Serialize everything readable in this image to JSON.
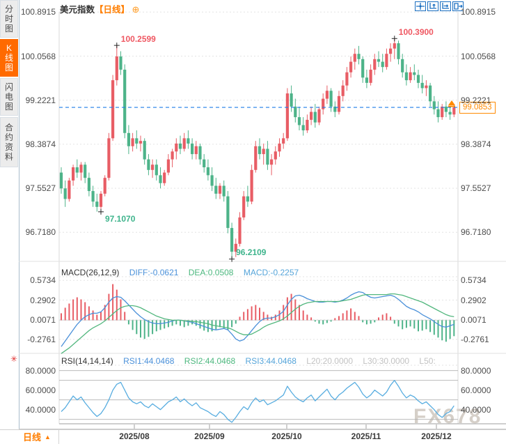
{
  "sidebar": {
    "items": [
      {
        "key": "timeshare",
        "label": "分时图",
        "active": false
      },
      {
        "key": "kline",
        "label": "K线图",
        "active": true
      },
      {
        "key": "lightning",
        "label": "闪电图",
        "active": false
      },
      {
        "key": "contract",
        "label": "合约资料",
        "active": false
      }
    ]
  },
  "header": {
    "title": "美元指数",
    "period_tag": "【日线】",
    "zoom_icon": "⊕"
  },
  "toolbar": {
    "icons": [
      "crosshair",
      "scale-y-axis",
      "scale-x-axis",
      "pan-exit"
    ]
  },
  "main_chart": {
    "y_tick_labels": [
      "100.8915",
      "100.0568",
      "99.2221",
      "98.3874",
      "97.5527",
      "96.7180"
    ],
    "current_price_label": "99.0853",
    "x_tick_labels": [
      "2025/08",
      "2025/09",
      "2025/10",
      "2025/11",
      "2025/12"
    ]
  },
  "macd": {
    "label": "MACD(26,12,9)",
    "diff_label": "DIFF:-0.0621",
    "dea_label": "DEA:0.0508",
    "macd_label": "MACD:-0.2257",
    "y_tick_labels": [
      "0.5734",
      "0.2902",
      "0.0071",
      "-0.2761"
    ]
  },
  "rsi": {
    "label": "RSI(14,14,14)",
    "rsi1_label": "RSI1:44.0468",
    "rsi2_label": "RSI2:44.0468",
    "rsi3_label": "RSI3:44.0468",
    "l20_label": "L20:20.0000",
    "l30_label": "L30:30.0000",
    "l50_label": "L50:",
    "y_tick_labels": [
      "80.0000",
      "60.0000",
      "40.0000"
    ]
  },
  "footer": {
    "period": "日线",
    "up_arrow": "▲",
    "watermark": "FX678"
  },
  "icons": {
    "blink": "✳"
  },
  "colors": {
    "up": "#e85d65",
    "down": "#4db389",
    "price_line": "#1f7ce8",
    "accent_orange": "#ff7e00",
    "diff_line": "#4a90d9",
    "dea_line": "#52b77e",
    "rsi_line": "#58ade0",
    "grid": "#e3e3e3",
    "level_line": "#b0b0b0",
    "toolbar_blue": "#1a6ec0"
  },
  "chart_data": {
    "type": "candlestick",
    "title": "美元指数 日线 (US Dollar Index, daily)",
    "x_axis": {
      "months": [
        "2025/08",
        "2025/09",
        "2025/10",
        "2025/11",
        "2025/12"
      ]
    },
    "main": {
      "y_ticks": [
        100.8915,
        100.0568,
        99.2221,
        98.3874,
        97.5527,
        96.718
      ],
      "current_price": 99.0853,
      "annotations": [
        {
          "label": "100.2599",
          "value": 100.2599,
          "index": 14,
          "side": "high"
        },
        {
          "label": "100.3900",
          "value": 100.39,
          "index": 84,
          "side": "high"
        },
        {
          "label": "97.1070",
          "value": 97.107,
          "index": 10,
          "side": "low"
        },
        {
          "label": "96.2109",
          "value": 96.2109,
          "index": 43,
          "side": "low",
          "dy": -17
        }
      ],
      "candles": [
        [
          97.85,
          97.95,
          97.45,
          97.55
        ],
        [
          97.55,
          97.7,
          97.2,
          97.35
        ],
        [
          97.35,
          97.75,
          97.3,
          97.7
        ],
        [
          97.7,
          98.0,
          97.6,
          97.95
        ],
        [
          97.95,
          98.1,
          97.75,
          97.85
        ],
        [
          97.85,
          98.05,
          97.7,
          98.0
        ],
        [
          98.0,
          98.05,
          97.65,
          97.75
        ],
        [
          97.75,
          97.85,
          97.4,
          97.5
        ],
        [
          97.5,
          97.6,
          97.2,
          97.3
        ],
        [
          97.3,
          97.45,
          97.11,
          97.2
        ],
        [
          97.2,
          97.5,
          97.107,
          97.45
        ],
        [
          97.45,
          97.8,
          97.4,
          97.75
        ],
        [
          97.75,
          98.6,
          97.7,
          98.5
        ],
        [
          98.5,
          99.7,
          98.45,
          99.6
        ],
        [
          99.6,
          100.2599,
          99.5,
          100.05
        ],
        [
          100.05,
          100.15,
          99.7,
          99.8
        ],
        [
          99.8,
          99.9,
          98.5,
          98.6
        ],
        [
          98.6,
          98.75,
          98.2,
          98.35
        ],
        [
          98.35,
          98.6,
          98.25,
          98.5
        ],
        [
          98.5,
          98.65,
          98.3,
          98.4
        ],
        [
          98.4,
          98.55,
          98.25,
          98.45
        ],
        [
          98.45,
          98.5,
          98.0,
          98.1
        ],
        [
          98.1,
          98.2,
          97.8,
          97.9
        ],
        [
          97.9,
          98.1,
          97.75,
          98.0
        ],
        [
          98.0,
          98.1,
          97.7,
          97.8
        ],
        [
          97.8,
          97.95,
          97.55,
          97.65
        ],
        [
          97.65,
          97.9,
          97.6,
          97.85
        ],
        [
          97.85,
          98.2,
          97.8,
          98.1
        ],
        [
          98.1,
          98.3,
          97.95,
          98.25
        ],
        [
          98.25,
          98.5,
          98.1,
          98.4
        ],
        [
          98.4,
          98.55,
          98.2,
          98.3
        ],
        [
          98.3,
          98.6,
          98.25,
          98.5
        ],
        [
          98.5,
          98.65,
          98.3,
          98.4
        ],
        [
          98.4,
          98.5,
          98.1,
          98.2
        ],
        [
          98.2,
          98.45,
          98.1,
          98.35
        ],
        [
          98.35,
          98.4,
          98.0,
          98.1
        ],
        [
          98.1,
          98.2,
          97.85,
          97.95
        ],
        [
          97.95,
          98.1,
          97.7,
          97.8
        ],
        [
          97.8,
          97.95,
          97.5,
          97.6
        ],
        [
          97.6,
          97.75,
          97.35,
          97.45
        ],
        [
          97.45,
          97.65,
          97.35,
          97.6
        ],
        [
          97.6,
          97.7,
          97.3,
          97.4
        ],
        [
          97.4,
          97.5,
          96.7,
          96.8
        ],
        [
          96.8,
          96.9,
          96.2109,
          96.35
        ],
        [
          96.35,
          96.6,
          96.25,
          96.5
        ],
        [
          96.5,
          97.1,
          96.45,
          97.0
        ],
        [
          97.0,
          97.5,
          96.95,
          97.4
        ],
        [
          97.4,
          97.6,
          97.2,
          97.3
        ],
        [
          97.3,
          98.0,
          97.25,
          97.9
        ],
        [
          97.9,
          98.45,
          97.85,
          98.35
        ],
        [
          98.35,
          98.5,
          98.1,
          98.2
        ],
        [
          98.2,
          98.4,
          98.0,
          98.3
        ],
        [
          98.3,
          98.45,
          97.9,
          98.0
        ],
        [
          98.0,
          98.2,
          97.8,
          98.1
        ],
        [
          98.1,
          98.35,
          98.0,
          98.25
        ],
        [
          98.25,
          98.5,
          98.15,
          98.4
        ],
        [
          98.4,
          98.6,
          98.3,
          98.5
        ],
        [
          98.5,
          99.45,
          98.45,
          99.35
        ],
        [
          99.35,
          99.5,
          99.0,
          99.1
        ],
        [
          99.1,
          99.25,
          98.8,
          98.9
        ],
        [
          98.9,
          99.1,
          98.65,
          98.75
        ],
        [
          98.75,
          98.9,
          98.55,
          98.65
        ],
        [
          98.65,
          98.95,
          98.6,
          98.85
        ],
        [
          98.85,
          99.1,
          98.75,
          99.0
        ],
        [
          99.0,
          99.15,
          98.7,
          98.8
        ],
        [
          98.8,
          99.1,
          98.75,
          99.05
        ],
        [
          99.05,
          99.35,
          98.95,
          99.25
        ],
        [
          99.25,
          99.5,
          99.15,
          99.4
        ],
        [
          99.4,
          99.45,
          99.0,
          99.1
        ],
        [
          99.1,
          99.2,
          98.9,
          99.0
        ],
        [
          99.0,
          99.4,
          98.95,
          99.3
        ],
        [
          99.3,
          99.6,
          99.2,
          99.5
        ],
        [
          99.5,
          99.85,
          99.4,
          99.75
        ],
        [
          99.75,
          100.05,
          99.65,
          99.95
        ],
        [
          99.95,
          100.2,
          99.8,
          100.1
        ],
        [
          100.1,
          100.25,
          99.9,
          100.0
        ],
        [
          100.0,
          100.05,
          99.55,
          99.65
        ],
        [
          99.65,
          99.8,
          99.45,
          99.55
        ],
        [
          99.55,
          99.9,
          99.5,
          99.8
        ],
        [
          99.8,
          100.1,
          99.7,
          100.0
        ],
        [
          100.0,
          100.15,
          99.85,
          99.95
        ],
        [
          99.95,
          100.1,
          99.75,
          99.85
        ],
        [
          99.85,
          100.2,
          99.8,
          100.1
        ],
        [
          100.1,
          100.3,
          99.95,
          100.2
        ],
        [
          100.2,
          100.39,
          100.0,
          100.3
        ],
        [
          100.3,
          100.35,
          99.9,
          100.0
        ],
        [
          100.0,
          100.1,
          99.65,
          99.75
        ],
        [
          99.75,
          99.9,
          99.5,
          99.6
        ],
        [
          99.6,
          99.85,
          99.55,
          99.75
        ],
        [
          99.75,
          99.9,
          99.6,
          99.7
        ],
        [
          99.7,
          99.8,
          99.45,
          99.55
        ],
        [
          99.55,
          99.7,
          99.35,
          99.45
        ],
        [
          99.45,
          99.6,
          99.3,
          99.5
        ],
        [
          99.5,
          99.55,
          99.1,
          99.2
        ],
        [
          99.2,
          99.3,
          98.95,
          99.05
        ],
        [
          99.05,
          99.2,
          98.8,
          98.9
        ],
        [
          98.9,
          99.15,
          98.85,
          99.1
        ],
        [
          99.1,
          99.2,
          98.9,
          99.0
        ],
        [
          99.0,
          99.1,
          98.85,
          98.95
        ],
        [
          98.95,
          99.15,
          98.9,
          99.0853
        ]
      ]
    },
    "macd": {
      "params": [
        26,
        12,
        9
      ],
      "diff": -0.0621,
      "dea": 0.0508,
      "macd": -0.2257,
      "y_ticks": [
        0.5734,
        0.2902,
        0.0071,
        -0.2761
      ],
      "hist": [
        0.1,
        0.18,
        0.24,
        0.3,
        0.33,
        0.3,
        0.26,
        0.2,
        0.14,
        0.08,
        0.12,
        0.22,
        0.38,
        0.52,
        0.44,
        0.3,
        0.12,
        -0.06,
        -0.14,
        -0.2,
        -0.25,
        -0.27,
        -0.24,
        -0.2,
        -0.16,
        -0.14,
        -0.12,
        -0.1,
        -0.08,
        -0.06,
        -0.08,
        -0.1,
        -0.08,
        -0.06,
        -0.08,
        -0.12,
        -0.15,
        -0.17,
        -0.16,
        -0.13,
        -0.1,
        -0.12,
        -0.14,
        -0.1,
        -0.05,
        0.05,
        0.12,
        0.16,
        0.2,
        0.22,
        0.18,
        0.12,
        0.08,
        0.05,
        0.08,
        0.14,
        0.22,
        0.33,
        0.38,
        0.3,
        0.22,
        0.14,
        0.08,
        0.04,
        -0.02,
        -0.05,
        -0.06,
        -0.04,
        -0.02,
        0.03,
        0.06,
        0.1,
        0.14,
        0.17,
        0.12,
        0.06,
        -0.03,
        -0.06,
        -0.05,
        -0.03,
        0.04,
        0.08,
        0.1,
        0.05,
        -0.05,
        -0.09,
        -0.13,
        -0.11,
        -0.09,
        -0.12,
        -0.16,
        -0.15,
        -0.13,
        -0.17,
        -0.21,
        -0.25,
        -0.29,
        -0.31,
        -0.27,
        -0.23
      ],
      "diff_series": [
        -0.38,
        -0.3,
        -0.22,
        -0.14,
        -0.06,
        0.0,
        0.05,
        0.08,
        0.1,
        0.1,
        0.12,
        0.18,
        0.26,
        0.32,
        0.34,
        0.33,
        0.28,
        0.22,
        0.16,
        0.1,
        0.05,
        0.01,
        -0.02,
        -0.04,
        -0.05,
        -0.05,
        -0.04,
        -0.03,
        -0.01,
        0.0,
        0.0,
        -0.01,
        -0.02,
        -0.03,
        -0.05,
        -0.07,
        -0.09,
        -0.11,
        -0.13,
        -0.14,
        -0.13,
        -0.12,
        -0.14,
        -0.2,
        -0.27,
        -0.3,
        -0.28,
        -0.22,
        -0.15,
        -0.08,
        -0.02,
        0.02,
        0.03,
        0.03,
        0.05,
        0.08,
        0.13,
        0.22,
        0.3,
        0.35,
        0.36,
        0.34,
        0.31,
        0.29,
        0.27,
        0.26,
        0.26,
        0.27,
        0.27,
        0.26,
        0.27,
        0.29,
        0.32,
        0.36,
        0.39,
        0.41,
        0.4,
        0.36,
        0.33,
        0.32,
        0.33,
        0.34,
        0.35,
        0.36,
        0.34,
        0.3,
        0.25,
        0.2,
        0.17,
        0.15,
        0.12,
        0.08,
        0.05,
        0.02,
        -0.02,
        -0.06,
        -0.09,
        -0.1,
        -0.08,
        -0.06
      ],
      "dea_series": [
        -0.48,
        -0.44,
        -0.4,
        -0.35,
        -0.3,
        -0.25,
        -0.2,
        -0.15,
        -0.11,
        -0.08,
        -0.05,
        -0.01,
        0.04,
        0.09,
        0.14,
        0.18,
        0.2,
        0.21,
        0.21,
        0.2,
        0.18,
        0.15,
        0.12,
        0.09,
        0.06,
        0.04,
        0.02,
        0.01,
        0.0,
        0.0,
        0.0,
        -0.01,
        -0.01,
        -0.02,
        -0.02,
        -0.03,
        -0.04,
        -0.05,
        -0.07,
        -0.08,
        -0.09,
        -0.1,
        -0.11,
        -0.13,
        -0.16,
        -0.19,
        -0.21,
        -0.21,
        -0.2,
        -0.17,
        -0.14,
        -0.1,
        -0.07,
        -0.05,
        -0.03,
        -0.01,
        0.02,
        0.06,
        0.11,
        0.16,
        0.2,
        0.23,
        0.25,
        0.26,
        0.27,
        0.27,
        0.27,
        0.27,
        0.27,
        0.27,
        0.27,
        0.28,
        0.29,
        0.3,
        0.32,
        0.34,
        0.36,
        0.37,
        0.37,
        0.37,
        0.37,
        0.37,
        0.37,
        0.38,
        0.38,
        0.37,
        0.36,
        0.34,
        0.32,
        0.3,
        0.28,
        0.26,
        0.23,
        0.2,
        0.17,
        0.14,
        0.11,
        0.08,
        0.06,
        0.05
      ]
    },
    "rsi": {
      "params": [
        14,
        14,
        14
      ],
      "rsi1": 44.0468,
      "rsi2": 44.0468,
      "rsi3": 44.0468,
      "levels": {
        "L20": 20.0,
        "L30": 30.0,
        "L50": 50.0,
        "L70": 70.0,
        "L80": 80.0
      },
      "y_ticks": [
        80,
        60,
        40
      ],
      "values": [
        38,
        42,
        48,
        54,
        50,
        53,
        47,
        42,
        37,
        33,
        36,
        42,
        50,
        60,
        66,
        68,
        60,
        52,
        48,
        46,
        48,
        44,
        42,
        46,
        43,
        40,
        44,
        48,
        50,
        53,
        48,
        51,
        47,
        44,
        47,
        42,
        40,
        38,
        35,
        33,
        38,
        35,
        30,
        27,
        32,
        38,
        43,
        40,
        47,
        52,
        48,
        50,
        45,
        47,
        49,
        52,
        55,
        64,
        58,
        53,
        50,
        48,
        52,
        55,
        49,
        53,
        57,
        61,
        54,
        50,
        55,
        58,
        62,
        65,
        68,
        63,
        56,
        52,
        55,
        60,
        57,
        54,
        58,
        65,
        70,
        64,
        57,
        52,
        55,
        53,
        49,
        46,
        48,
        44,
        40,
        35,
        32,
        36,
        38,
        44
      ]
    }
  }
}
